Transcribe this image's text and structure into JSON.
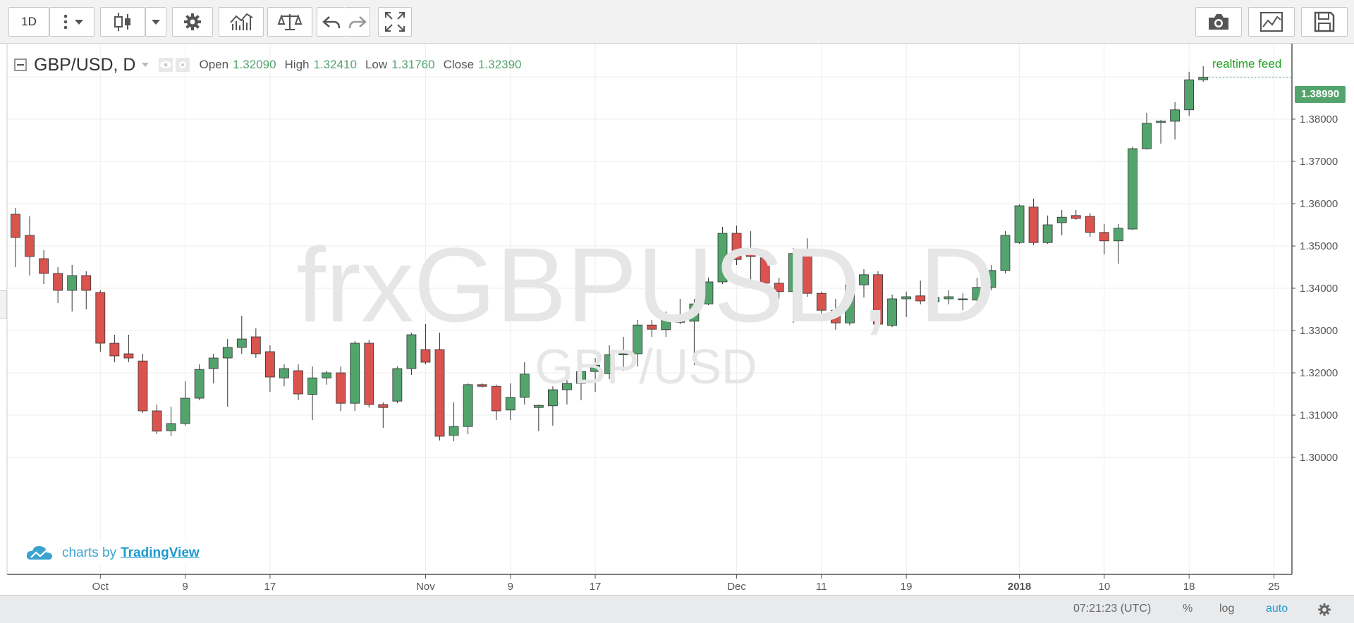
{
  "toolbar": {
    "interval_label": "1D",
    "buttons": [
      "chart-type",
      "settings",
      "indicators",
      "compare",
      "undo",
      "redo",
      "fullscreen",
      "snapshot",
      "chart-style",
      "save"
    ]
  },
  "legend": {
    "symbol": "GBP/USD, D",
    "open_label": "Open",
    "open_value": "1.32090",
    "high_label": "High",
    "high_value": "1.32410",
    "low_label": "Low",
    "low_value": "1.31760",
    "close_label": "Close",
    "close_value": "1.32390"
  },
  "realtime_feed": "realtime feed",
  "current_price": "1.38990",
  "watermark": {
    "line1": "frxGBPUSD, D",
    "line2": "GBP/USD"
  },
  "credit": {
    "prefix": "charts by",
    "link": "TradingView"
  },
  "bottombar": {
    "time": "07:21:23 (UTC)",
    "percent": "%",
    "log": "log",
    "auto": "auto"
  },
  "colors": {
    "up": "#53a36d",
    "down": "#d9534f",
    "grid": "#eeeeee",
    "accent": "#21a021",
    "link": "#1e9ad0"
  },
  "chart_data": {
    "type": "candlestick",
    "title": "GBP/USD, D",
    "ylim": [
      1.295,
      1.4
    ],
    "y_ticks": [
      "1.30000",
      "1.31000",
      "1.32000",
      "1.33000",
      "1.34000",
      "1.35000",
      "1.36000",
      "1.37000",
      "1.38000"
    ],
    "x_tick_labels": [
      {
        "label": "Oct",
        "i": 6
      },
      {
        "label": "9",
        "i": 12
      },
      {
        "label": "17",
        "i": 18
      },
      {
        "label": "Nov",
        "i": 29
      },
      {
        "label": "9",
        "i": 35
      },
      {
        "label": "17",
        "i": 41
      },
      {
        "label": "Dec",
        "i": 51
      },
      {
        "label": "11",
        "i": 57
      },
      {
        "label": "19",
        "i": 63
      },
      {
        "label": "2018",
        "i": 71
      },
      {
        "label": "10",
        "i": 77
      },
      {
        "label": "18",
        "i": 83
      },
      {
        "label": "25",
        "i": 89
      }
    ],
    "candles": [
      [
        1.3575,
        1.359,
        1.345,
        1.352
      ],
      [
        1.3525,
        1.357,
        1.343,
        1.3475
      ],
      [
        1.347,
        1.349,
        1.341,
        1.3435
      ],
      [
        1.3435,
        1.345,
        1.3365,
        1.3395
      ],
      [
        1.3395,
        1.3455,
        1.3345,
        1.343
      ],
      [
        1.343,
        1.344,
        1.335,
        1.3395
      ],
      [
        1.339,
        1.3395,
        1.325,
        1.327
      ],
      [
        1.327,
        1.329,
        1.3225,
        1.324
      ],
      [
        1.3245,
        1.329,
        1.3225,
        1.3235
      ],
      [
        1.3228,
        1.3245,
        1.3105,
        1.311
      ],
      [
        1.311,
        1.3125,
        1.3055,
        1.3062
      ],
      [
        1.3063,
        1.312,
        1.305,
        1.308
      ],
      [
        1.308,
        1.318,
        1.3075,
        1.314
      ],
      [
        1.314,
        1.322,
        1.3135,
        1.3208
      ],
      [
        1.321,
        1.3245,
        1.3175,
        1.3235
      ],
      [
        1.3235,
        1.328,
        1.312,
        1.326
      ],
      [
        1.326,
        1.3335,
        1.3245,
        1.328
      ],
      [
        1.3285,
        1.3305,
        1.3235,
        1.3245
      ],
      [
        1.325,
        1.3265,
        1.3155,
        1.319
      ],
      [
        1.3188,
        1.322,
        1.3168,
        1.321
      ],
      [
        1.3205,
        1.322,
        1.3135,
        1.315
      ],
      [
        1.3149,
        1.3215,
        1.3088,
        1.3188
      ],
      [
        1.3188,
        1.3205,
        1.3172,
        1.32
      ],
      [
        1.32,
        1.3215,
        1.311,
        1.3128
      ],
      [
        1.3128,
        1.3275,
        1.311,
        1.327
      ],
      [
        1.327,
        1.3278,
        1.3118,
        1.3125
      ],
      [
        1.3125,
        1.313,
        1.307,
        1.3118
      ],
      [
        1.3133,
        1.3215,
        1.3128,
        1.321
      ],
      [
        1.321,
        1.3295,
        1.3195,
        1.329
      ],
      [
        1.3255,
        1.3315,
        1.322,
        1.3225
      ],
      [
        1.3255,
        1.3295,
        1.304,
        1.305
      ],
      [
        1.3052,
        1.313,
        1.3038,
        1.3073
      ],
      [
        1.3073,
        1.3175,
        1.3055,
        1.3172
      ],
      [
        1.3172,
        1.3175,
        1.3165,
        1.3168
      ],
      [
        1.3168,
        1.3172,
        1.3088,
        1.311
      ],
      [
        1.3112,
        1.3175,
        1.3088,
        1.3142
      ],
      [
        1.3142,
        1.3225,
        1.3125,
        1.3197
      ],
      [
        1.3118,
        1.3125,
        1.3062,
        1.3123
      ],
      [
        1.3122,
        1.3168,
        1.3075,
        1.316
      ],
      [
        1.316,
        1.3205,
        1.3125,
        1.3175
      ],
      [
        1.3175,
        1.3225,
        1.3135,
        1.3203
      ],
      [
        1.3203,
        1.3235,
        1.3155,
        1.3218
      ],
      [
        1.3198,
        1.3265,
        1.3185,
        1.3243
      ],
      [
        1.3243,
        1.3285,
        1.3205,
        1.3245
      ],
      [
        1.3245,
        1.3325,
        1.3215,
        1.3313
      ],
      [
        1.3313,
        1.3325,
        1.3285,
        1.3303
      ],
      [
        1.3302,
        1.3345,
        1.3285,
        1.3332
      ],
      [
        1.332,
        1.3375,
        1.3315,
        1.3322
      ],
      [
        1.3322,
        1.3375,
        1.3218,
        1.3363
      ],
      [
        1.3363,
        1.3425,
        1.336,
        1.3415
      ],
      [
        1.3415,
        1.3545,
        1.341,
        1.353
      ],
      [
        1.353,
        1.3548,
        1.3455,
        1.3468
      ],
      [
        1.349,
        1.3535,
        1.3418,
        1.3475
      ],
      [
        1.3472,
        1.3485,
        1.3405,
        1.3412
      ],
      [
        1.3412,
        1.3425,
        1.3375,
        1.3392
      ],
      [
        1.3392,
        1.3495,
        1.3318,
        1.3482
      ],
      [
        1.3482,
        1.3518,
        1.338,
        1.3388
      ],
      [
        1.3388,
        1.3392,
        1.3335,
        1.3348
      ],
      [
        1.3348,
        1.3375,
        1.3302,
        1.3318
      ],
      [
        1.3318,
        1.3415,
        1.3312,
        1.3408
      ],
      [
        1.3408,
        1.3445,
        1.3378,
        1.3432
      ],
      [
        1.3432,
        1.344,
        1.3305,
        1.3315
      ],
      [
        1.3312,
        1.3385,
        1.3308,
        1.3375
      ],
      [
        1.3375,
        1.3392,
        1.3332,
        1.338
      ],
      [
        1.3382,
        1.3418,
        1.3362,
        1.337
      ],
      [
        1.3368,
        1.3388,
        1.3335,
        1.3378
      ],
      [
        1.3375,
        1.3395,
        1.3362,
        1.338
      ],
      [
        1.3375,
        1.3388,
        1.3348,
        1.3375
      ],
      [
        1.3372,
        1.3425,
        1.3362,
        1.3402
      ],
      [
        1.3402,
        1.3455,
        1.3395,
        1.3442
      ],
      [
        1.3442,
        1.3535,
        1.3435,
        1.3525
      ],
      [
        1.3508,
        1.3598,
        1.3505,
        1.3595
      ],
      [
        1.3592,
        1.3612,
        1.3502,
        1.3508
      ],
      [
        1.3508,
        1.3572,
        1.3505,
        1.355
      ],
      [
        1.3555,
        1.3585,
        1.3525,
        1.3568
      ],
      [
        1.3572,
        1.3585,
        1.3562,
        1.3565
      ],
      [
        1.357,
        1.3578,
        1.3522,
        1.3532
      ],
      [
        1.3532,
        1.3552,
        1.348,
        1.3512
      ],
      [
        1.3512,
        1.3552,
        1.3458,
        1.3542
      ],
      [
        1.354,
        1.3735,
        1.3538,
        1.373
      ],
      [
        1.373,
        1.3815,
        1.3728,
        1.379
      ],
      [
        1.3792,
        1.3798,
        1.3742,
        1.3795
      ],
      [
        1.3795,
        1.384,
        1.3752,
        1.3822
      ],
      [
        1.3822,
        1.3912,
        1.3808,
        1.3893
      ],
      [
        1.3893,
        1.3925,
        1.3888,
        1.3899
      ]
    ]
  }
}
